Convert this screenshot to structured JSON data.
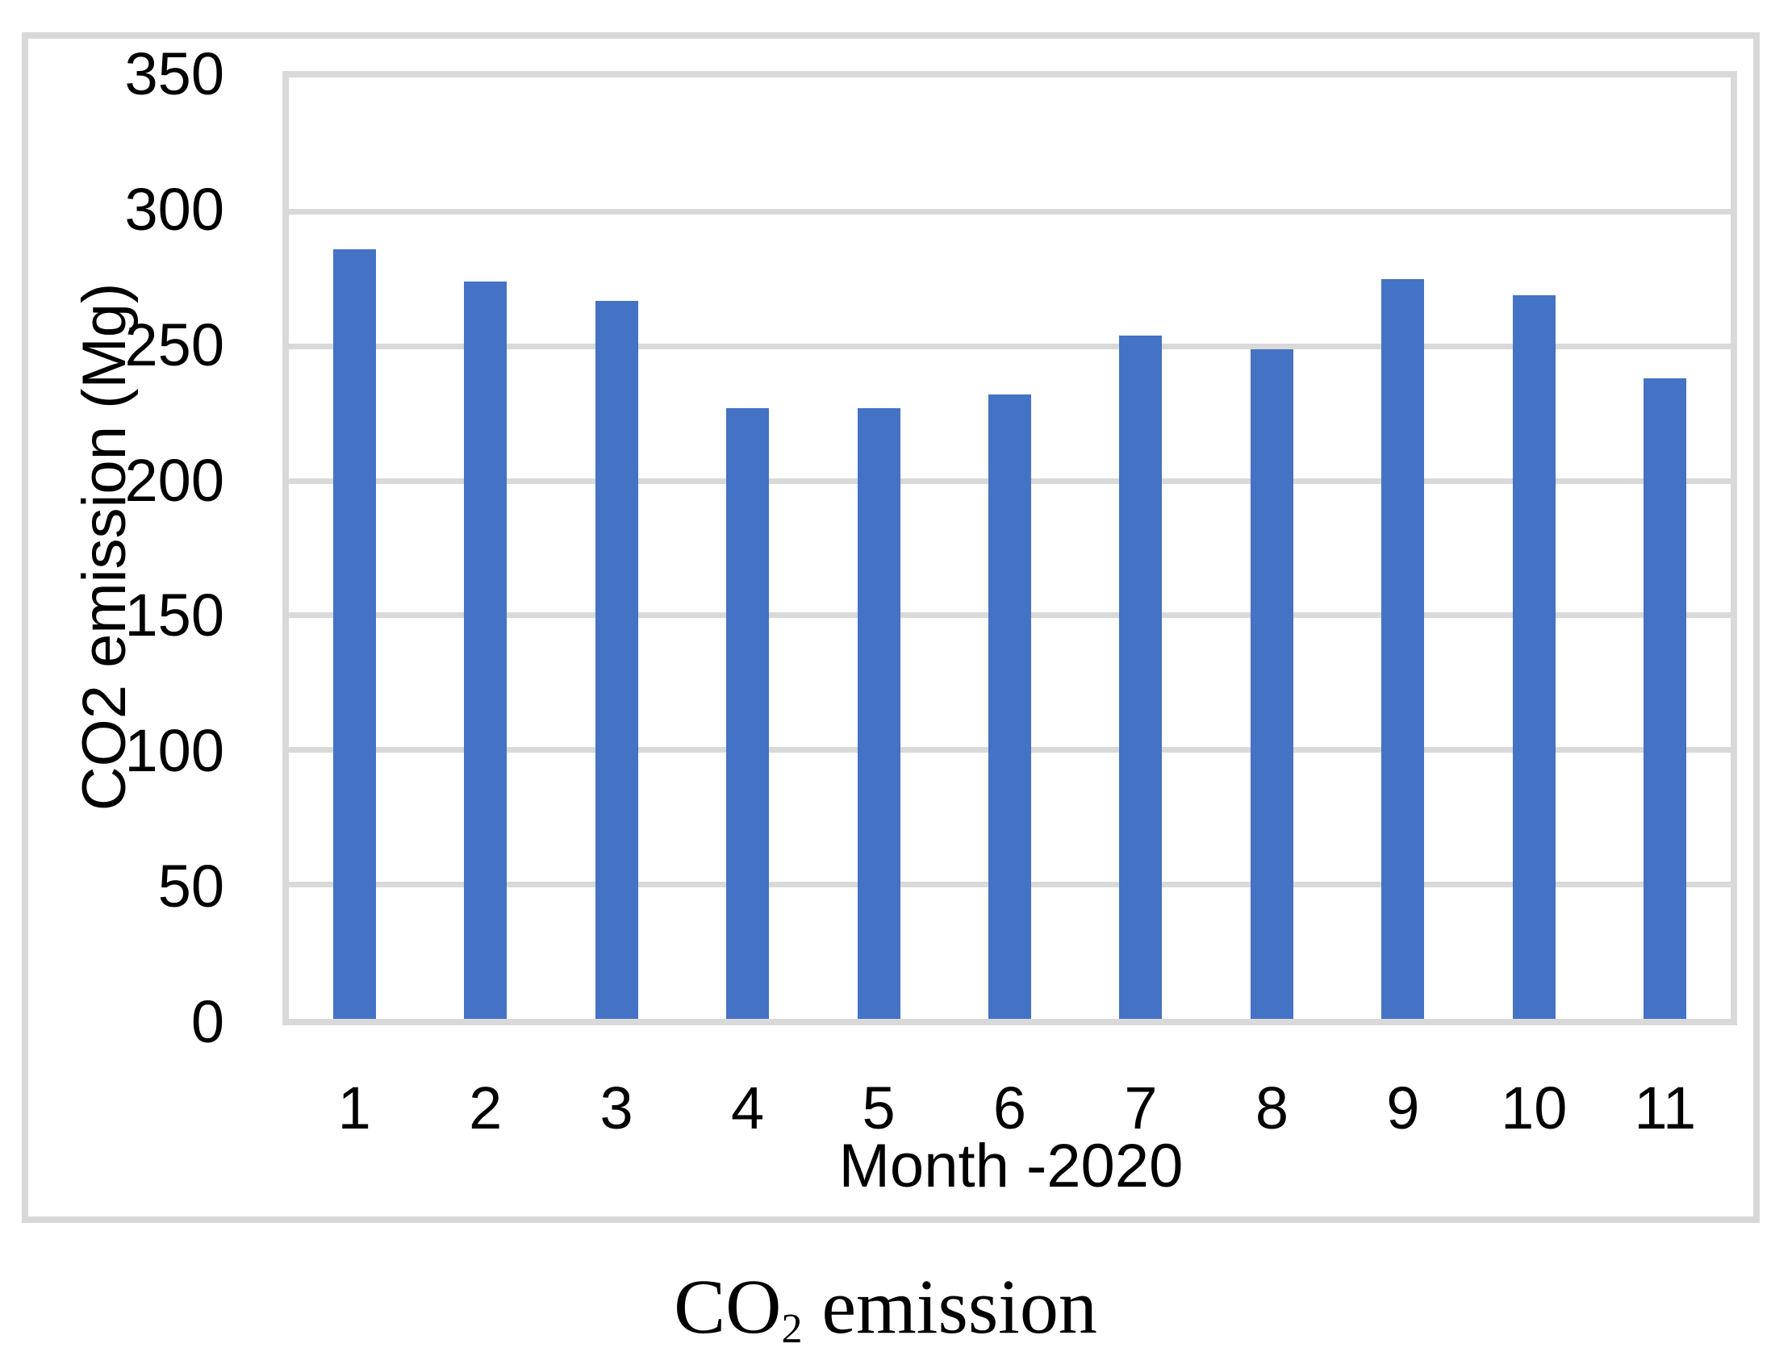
{
  "figure": {
    "caption": {
      "prefix": "CO",
      "subscript": "2",
      "suffix": " emission"
    }
  },
  "chart_data": {
    "type": "bar",
    "title": "CO2 emission",
    "categories": [
      "1",
      "2",
      "3",
      "4",
      "5",
      "6",
      "7",
      "8",
      "9",
      "10",
      "11"
    ],
    "values": [
      286,
      274,
      267,
      227,
      227,
      232,
      254,
      249,
      275,
      269,
      238
    ],
    "xlabel": "Month -2020",
    "ylabel": "CO2 emission (Mg)",
    "ylim": [
      0,
      350
    ],
    "yticks": [
      0,
      50,
      100,
      150,
      200,
      250,
      300,
      350
    ],
    "grid": true,
    "legend_position": "none",
    "bar_color": "#4472C4",
    "gridline_color": "#D9D9D9",
    "border_color": "#D8D8D8",
    "text_color": "#000000"
  }
}
